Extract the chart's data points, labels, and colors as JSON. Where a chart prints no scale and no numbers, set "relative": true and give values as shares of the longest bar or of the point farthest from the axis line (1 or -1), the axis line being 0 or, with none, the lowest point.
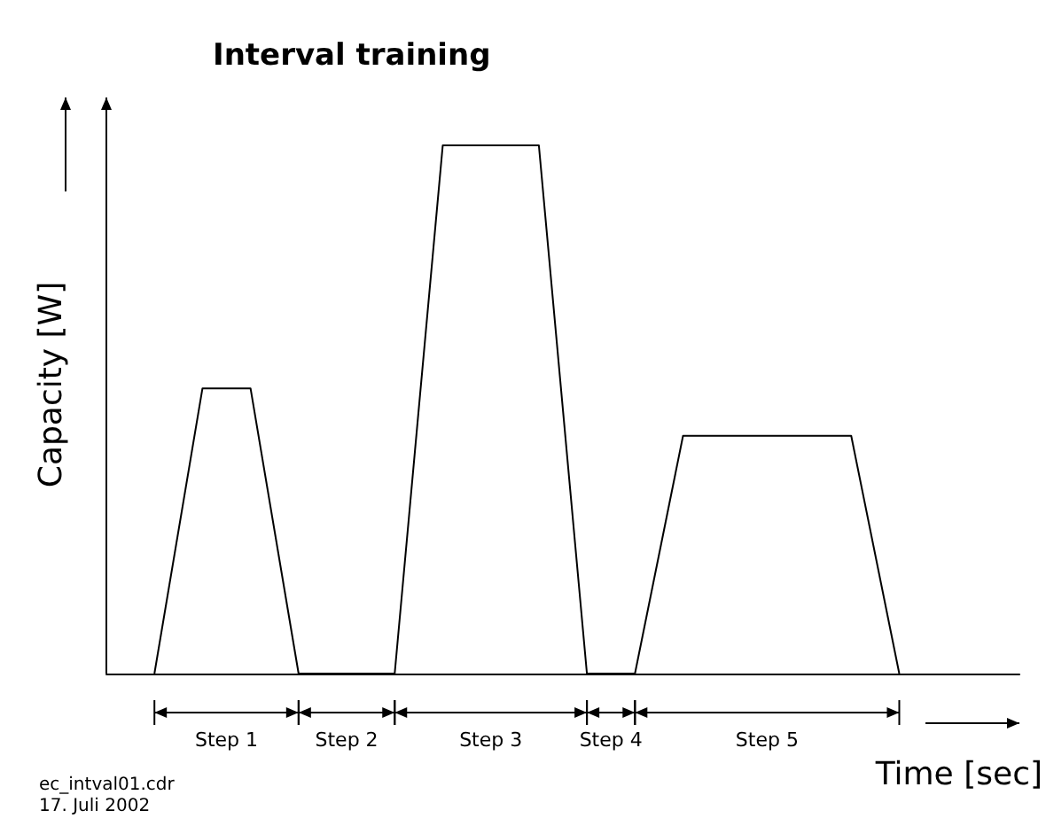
{
  "chart_data": {
    "type": "line",
    "title": "Interval training",
    "xlabel": "Time [sec]",
    "ylabel": "Capacity [W]",
    "relative": true,
    "marker": "none",
    "categories": [
      null,
      null,
      null,
      null,
      null,
      null,
      null,
      null,
      null,
      null,
      null,
      null,
      null,
      null,
      null,
      null,
      null,
      null,
      null,
      null,
      null,
      null,
      null,
      null,
      null,
      null,
      null,
      null,
      null,
      null,
      null,
      null,
      null,
      null,
      null,
      null,
      null,
      null,
      null
    ],
    "series": [
      {
        "color": "#000000",
        "values": [
          null,
          null,
          0,
          null,
          0.54,
          null,
          0.54,
          null,
          0,
          null,
          null,
          null,
          0,
          null,
          1,
          null,
          null,
          null,
          1,
          null,
          0,
          null,
          0,
          null,
          0.45,
          null,
          null,
          null,
          null,
          null,
          null,
          0.45,
          null,
          0,
          null,
          null,
          null,
          null,
          null
        ]
      }
    ],
    "annotations": [
      "Step 1",
      "Step 2",
      "Step 3",
      "Step 4",
      "Step 5",
      "ec_intval01.cdr",
      "17. Juli 2002"
    ]
  }
}
